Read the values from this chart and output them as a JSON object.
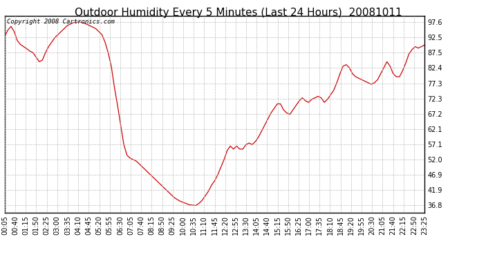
{
  "title": "Outdoor Humidity Every 5 Minutes (Last 24 Hours)  20081011",
  "copyright_text": "Copyright 2008 Cartronics.com",
  "line_color": "#cc0000",
  "background_color": "#ffffff",
  "grid_color": "#bbbbbb",
  "yticks": [
    36.8,
    41.9,
    46.9,
    52.0,
    57.1,
    62.1,
    67.2,
    72.3,
    77.3,
    82.4,
    87.5,
    92.5,
    97.6
  ],
  "ylim": [
    34.5,
    99.8
  ],
  "x_labels": [
    "00:05",
    "00:40",
    "01:15",
    "01:50",
    "02:25",
    "03:00",
    "03:35",
    "04:10",
    "04:45",
    "05:20",
    "05:55",
    "06:30",
    "07:05",
    "07:40",
    "08:15",
    "08:50",
    "09:25",
    "10:00",
    "10:35",
    "11:10",
    "11:45",
    "12:20",
    "12:55",
    "13:30",
    "14:05",
    "14:40",
    "15:15",
    "15:50",
    "16:25",
    "17:00",
    "17:35",
    "18:10",
    "18:45",
    "19:20",
    "19:55",
    "20:30",
    "21:05",
    "21:40",
    "22:15",
    "22:50",
    "23:25"
  ],
  "humidity_data": [
    93.0,
    95.0,
    96.2,
    94.5,
    91.5,
    90.2,
    89.5,
    88.8,
    88.0,
    87.5,
    86.0,
    84.5,
    85.0,
    87.5,
    89.5,
    91.0,
    92.5,
    93.5,
    94.5,
    95.5,
    96.5,
    97.0,
    97.5,
    97.6,
    97.6,
    97.4,
    97.0,
    96.5,
    96.0,
    95.5,
    94.5,
    93.5,
    91.0,
    87.5,
    83.0,
    76.0,
    70.0,
    63.5,
    57.0,
    53.5,
    52.5,
    52.0,
    51.5,
    50.5,
    49.5,
    48.5,
    47.5,
    46.5,
    45.5,
    44.5,
    43.5,
    42.5,
    41.5,
    40.5,
    39.5,
    38.8,
    38.2,
    37.8,
    37.4,
    37.0,
    36.9,
    36.8,
    37.5,
    38.5,
    40.0,
    41.5,
    43.5,
    45.0,
    47.0,
    49.5,
    52.0,
    55.0,
    56.5,
    55.5,
    56.5,
    55.5,
    55.5,
    57.0,
    57.5,
    57.0,
    58.0,
    59.5,
    61.5,
    63.5,
    65.5,
    67.5,
    69.0,
    70.5,
    70.5,
    68.5,
    67.5,
    67.0,
    68.5,
    70.0,
    71.5,
    72.5,
    71.5,
    71.0,
    72.0,
    72.5,
    73.0,
    72.5,
    71.0,
    72.0,
    73.5,
    75.0,
    77.5,
    80.5,
    83.0,
    83.5,
    82.5,
    80.5,
    79.5,
    79.0,
    78.5,
    78.0,
    77.5,
    77.0,
    77.5,
    78.5,
    80.5,
    82.5,
    84.5,
    83.0,
    80.5,
    79.5,
    79.5,
    81.5,
    84.0,
    87.0,
    88.5,
    89.5,
    89.0,
    89.5,
    90.0
  ],
  "title_fontsize": 11,
  "tick_fontsize": 7,
  "copyright_fontsize": 6.5
}
